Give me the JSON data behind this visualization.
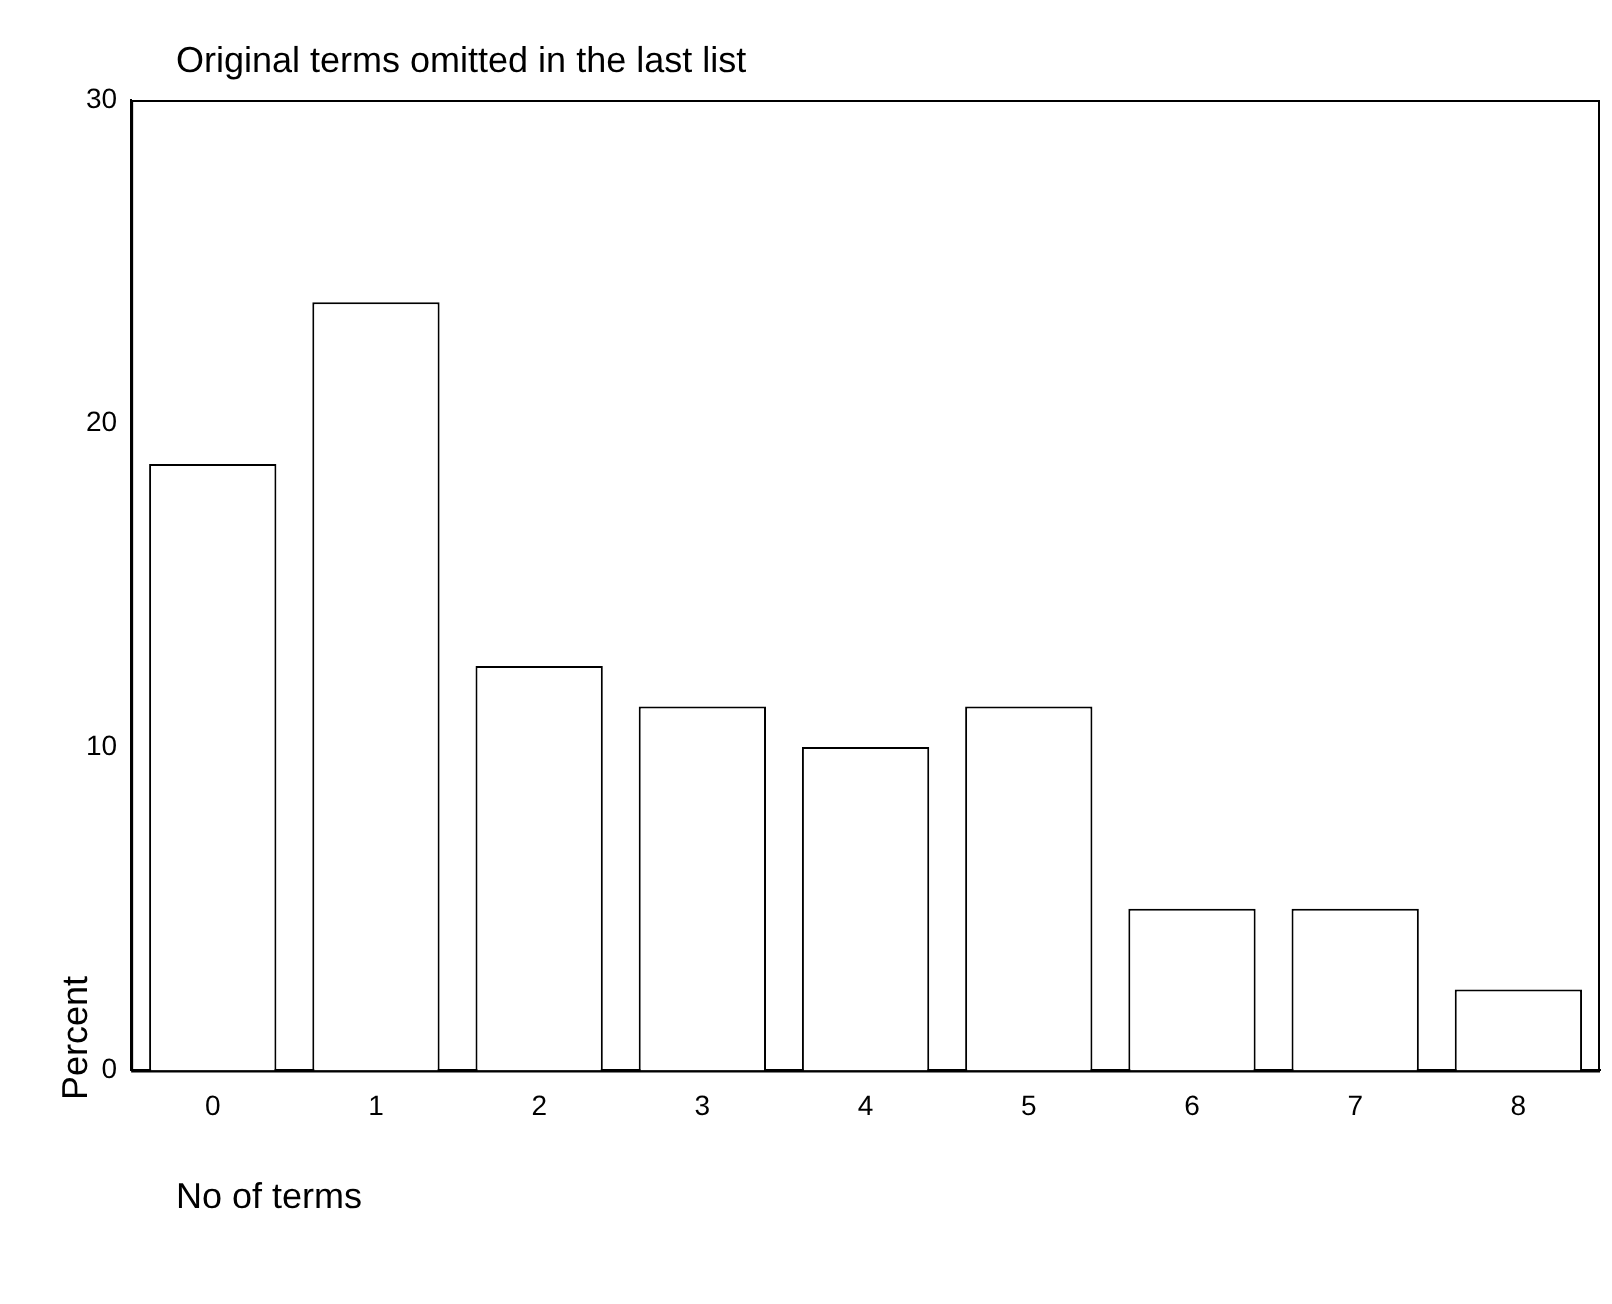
{
  "chart_data": {
    "type": "bar",
    "title": "Original terms omitted in the last list",
    "xlabel": "No of terms",
    "ylabel": "Percent",
    "categories": [
      "0",
      "1",
      "2",
      "3",
      "4",
      "5",
      "6",
      "7",
      "8"
    ],
    "values": [
      18.75,
      23.75,
      12.5,
      11.25,
      10,
      11.25,
      5,
      5,
      2.5
    ],
    "color": "#ffffff",
    "ylim": [
      0,
      30
    ],
    "yticks": [
      0,
      10,
      20,
      30
    ],
    "grid": false,
    "legend": false
  }
}
